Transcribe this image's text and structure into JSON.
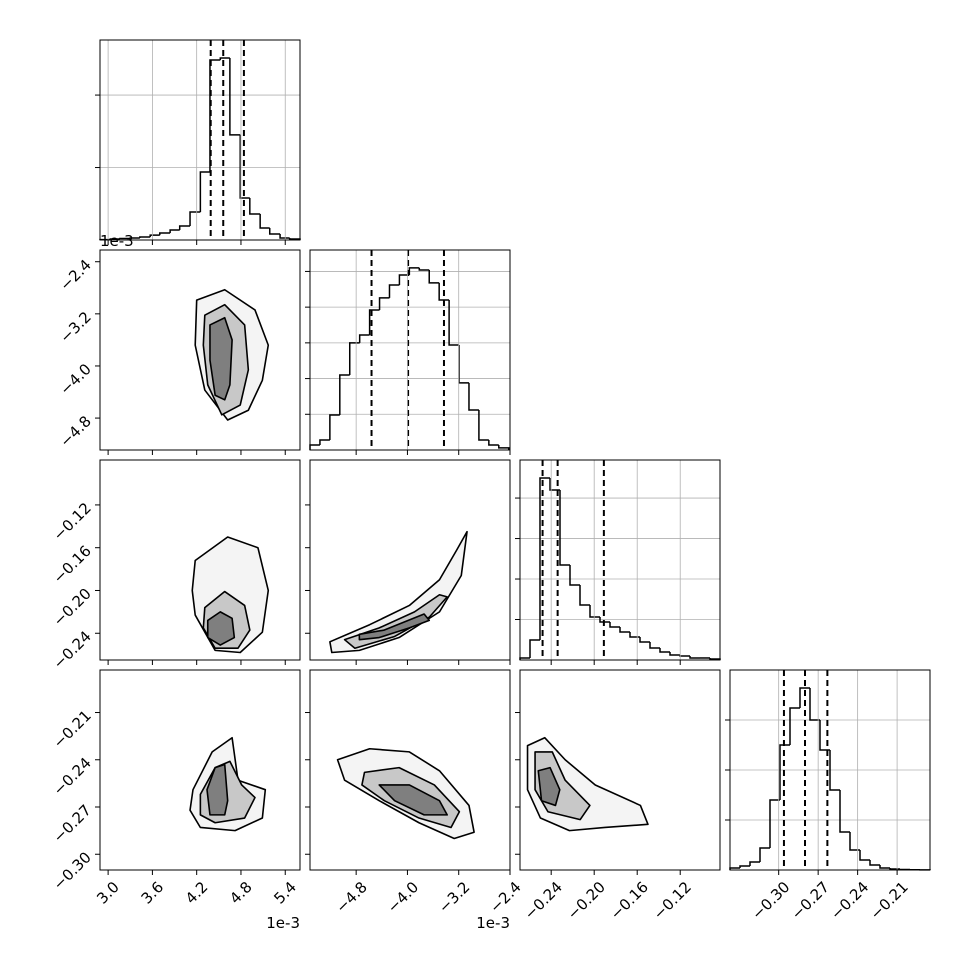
{
  "chart_data": {
    "type": "corner",
    "grid": true,
    "color": "#000000",
    "params": [
      {
        "xlim": [
          2.89,
          5.6
        ],
        "xticks": [
          {
            "value": 3,
            "label": "3.0"
          },
          3.6,
          4.2,
          4.8,
          5.4
        ],
        "x_offset": "1e-3",
        "bins": [
          2.89,
          3.03,
          3.16,
          3.3,
          3.43,
          3.57,
          3.7,
          3.84,
          3.97,
          4.11,
          4.25,
          4.38,
          4.52,
          4.65,
          4.79,
          4.92,
          5.06,
          5.19,
          5.33,
          5.46,
          5.6
        ],
        "counts": [
          3,
          7,
          10,
          14,
          21,
          34,
          48,
          69,
          97,
          193,
          469,
          1242,
          1256,
          725,
          290,
          179,
          83,
          41,
          14,
          7
        ],
        "hist_ylim": [
          0,
          1380
        ],
        "hist_yticks": [
          500,
          1000
        ],
        "quantiles": [
          4.39,
          4.56,
          4.84
        ]
      },
      {
        "xlim": [
          -5.52,
          -2.4
        ],
        "xticks": [
          {
            "value": -4.8,
            "label": "−4.8"
          },
          {
            "value": -4.0,
            "label": "−4.0"
          },
          {
            "value": -3.2,
            "label": "−3.2"
          },
          {
            "value": -2.4,
            "label": "−2.4"
          }
        ],
        "x_offset": "1e-3",
        "ylim": [
          -5.29,
          -2.22
        ],
        "yticks": [
          {
            "value": -2.4,
            "label": "−2.4"
          },
          {
            "value": -3.2,
            "label": "−3.2"
          },
          {
            "value": -4.0,
            "label": "−4.0"
          },
          {
            "value": -4.8,
            "label": "−4.8"
          }
        ],
        "y_offset": "1e-3",
        "bins": [
          -5.52,
          -5.365,
          -5.21,
          -5.055,
          -4.9,
          -4.745,
          -4.59,
          -4.435,
          -4.28,
          -4.125,
          -3.97,
          -3.815,
          -3.66,
          -3.505,
          -3.35,
          -3.195,
          -3.04,
          -2.885,
          -2.73,
          -2.575,
          -2.42
        ],
        "counts": [
          14,
          28,
          98,
          210,
          300,
          322,
          392,
          426,
          462,
          490,
          510,
          504,
          468,
          420,
          294,
          188,
          112,
          28,
          14,
          6
        ],
        "hist_ylim": [
          0,
          560
        ],
        "hist_yticks": [
          100,
          200,
          300,
          400,
          500
        ],
        "quantiles": [
          -4.56,
          -3.99,
          -3.43
        ]
      },
      {
        "xlim": [
          -0.269,
          -0.083
        ],
        "xticks": [
          {
            "value": -0.24,
            "label": "−0.24"
          },
          {
            "value": -0.2,
            "label": "−0.20"
          },
          {
            "value": -0.16,
            "label": "−0.16"
          },
          {
            "value": -0.12,
            "label": "−0.12"
          }
        ],
        "ylim": [
          -0.265,
          -0.078
        ],
        "yticks": [
          {
            "value": -0.12,
            "label": "−0.12"
          },
          {
            "value": -0.16,
            "label": "−0.16"
          },
          {
            "value": -0.2,
            "label": "−0.20"
          },
          {
            "value": -0.24,
            "label": "−0.24"
          }
        ],
        "bins": [
          -0.269,
          -0.2597,
          -0.2504,
          -0.2411,
          -0.2318,
          -0.2225,
          -0.2132,
          -0.2039,
          -0.1946,
          -0.1853,
          -0.176,
          -0.1667,
          -0.1574,
          -0.1481,
          -0.1388,
          -0.1295,
          -0.1202,
          -0.1109,
          -0.1016,
          -0.0923,
          -0.083
        ],
        "counts": [
          25,
          247,
          2248,
          2100,
          1173,
          926,
          679,
          531,
          469,
          408,
          346,
          284,
          222,
          148,
          99,
          62,
          49,
          25,
          25,
          12
        ],
        "hist_ylim": [
          0,
          2470
        ],
        "hist_yticks": [
          500,
          1000,
          1500,
          2000
        ],
        "quantiles": [
          -0.248,
          -0.234,
          -0.191
        ]
      },
      {
        "xlim": [
          -0.337,
          -0.185
        ],
        "xticks": [
          {
            "value": -0.3,
            "label": "−0.30"
          },
          {
            "value": -0.27,
            "label": "−0.27"
          },
          {
            "value": -0.24,
            "label": "−0.24"
          },
          {
            "value": -0.21,
            "label": "−0.21"
          }
        ],
        "ylim": [
          -0.31,
          -0.183
        ],
        "yticks": [
          {
            "value": -0.21,
            "label": "−0.21"
          },
          {
            "value": -0.24,
            "label": "−0.24"
          },
          {
            "value": -0.27,
            "label": "−0.27"
          },
          {
            "value": -0.3,
            "label": "−0.30"
          }
        ],
        "bins": [
          -0.337,
          -0.3294,
          -0.3218,
          -0.3142,
          -0.3066,
          -0.299,
          -0.2914,
          -0.2838,
          -0.2762,
          -0.2686,
          -0.261,
          -0.2534,
          -0.2458,
          -0.2382,
          -0.2306,
          -0.223,
          -0.2154,
          -0.2078,
          -0.2002,
          -0.1926,
          -0.185
        ],
        "counts": [
          20,
          40,
          80,
          220,
          700,
          1250,
          1620,
          1820,
          1500,
          1200,
          800,
          380,
          200,
          100,
          50,
          20,
          10,
          5,
          2,
          1
        ],
        "hist_ylim": [
          0,
          2000
        ],
        "hist_yticks": [
          500,
          1000,
          1500
        ],
        "quantiles": [
          -0.296,
          -0.28,
          -0.263
        ]
      }
    ],
    "pairs": [
      {
        "contours": [
          {
            "x": [
              4.2,
              4.58,
              4.99,
              5.17,
              5.09,
              4.9,
              4.62,
              4.31,
              4.18
            ],
            "y": [
              -2.99,
              -2.83,
              -3.14,
              -3.68,
              -4.22,
              -4.68,
              -4.83,
              -4.37,
              -3.68
            ]
          },
          {
            "x": [
              4.31,
              4.58,
              4.85,
              4.9,
              4.79,
              4.54,
              4.35,
              4.29
            ],
            "y": [
              -3.22,
              -3.06,
              -3.37,
              -4.06,
              -4.6,
              -4.75,
              -4.29,
              -3.68
            ]
          },
          {
            "x": [
              4.38,
              4.58,
              4.68,
              4.65,
              4.58,
              4.45,
              4.38
            ],
            "y": [
              -3.37,
              -3.26,
              -3.6,
              -4.29,
              -4.52,
              -4.45,
              -3.91
            ]
          }
        ]
      },
      {
        "contours": [
          {
            "x": [
              4.18,
              4.62,
              5.03,
              5.17,
              5.09,
              4.79,
              4.45,
              4.18,
              4.14
            ],
            "y": [
              -0.172,
              -0.15,
              -0.16,
              -0.2,
              -0.239,
              -0.258,
              -0.256,
              -0.223,
              -0.2
            ]
          },
          {
            "x": [
              4.31,
              4.58,
              4.85,
              4.92,
              4.76,
              4.45,
              4.29
            ],
            "y": [
              -0.216,
              -0.201,
              -0.214,
              -0.237,
              -0.254,
              -0.254,
              -0.235
            ]
          },
          {
            "x": [
              4.35,
              4.52,
              4.68,
              4.71,
              4.52,
              4.35
            ],
            "y": [
              -0.228,
              -0.22,
              -0.226,
              -0.244,
              -0.251,
              -0.244
            ]
          }
        ]
      },
      {
        "contours": [
          {
            "x": [
              -5.21,
              -4.59,
              -3.97,
              -3.5,
              -3.23,
              -3.07,
              -3.16,
              -3.5,
              -4.13,
              -4.75,
              -5.18
            ],
            "y": [
              -0.248,
              -0.232,
              -0.214,
              -0.19,
              -0.162,
              -0.145,
              -0.186,
              -0.22,
              -0.244,
              -0.256,
              -0.258
            ]
          },
          {
            "x": [
              -4.98,
              -4.44,
              -3.89,
              -3.5,
              -3.38,
              -3.66,
              -4.2,
              -4.82
            ],
            "y": [
              -0.246,
              -0.235,
              -0.22,
              -0.204,
              -0.206,
              -0.225,
              -0.243,
              -0.254
            ]
          },
          {
            "x": [
              -4.75,
              -4.36,
              -3.74,
              -3.66,
              -3.97,
              -4.44,
              -4.75
            ],
            "y": [
              -0.241,
              -0.237,
              -0.222,
              -0.228,
              -0.235,
              -0.244,
              -0.246
            ]
          }
        ]
      },
      {
        "contours": [
          {
            "x": [
              4.15,
              4.41,
              4.68,
              4.76,
              5.13,
              5.09,
              4.72,
              4.25,
              4.11
            ],
            "y": [
              -0.259,
              -0.235,
              -0.226,
              -0.253,
              -0.259,
              -0.277,
              -0.285,
              -0.283,
              -0.272
            ]
          },
          {
            "x": [
              4.25,
              4.45,
              4.65,
              4.81,
              4.99,
              4.85,
              4.45,
              4.25
            ],
            "y": [
              -0.262,
              -0.245,
              -0.241,
              -0.256,
              -0.264,
              -0.277,
              -0.28,
              -0.275
            ]
          },
          {
            "x": [
              4.34,
              4.45,
              4.58,
              4.62,
              4.58,
              4.38
            ],
            "y": [
              -0.259,
              -0.245,
              -0.243,
              -0.266,
              -0.275,
              -0.275
            ]
          }
        ]
      },
      {
        "contours": [
          {
            "x": [
              -5.09,
              -4.59,
              -3.97,
              -3.5,
              -3.04,
              -2.96,
              -3.27,
              -3.82,
              -4.44,
              -4.98
            ],
            "y": [
              -0.24,
              -0.233,
              -0.235,
              -0.247,
              -0.269,
              -0.286,
              -0.29,
              -0.28,
              -0.266,
              -0.253
            ]
          },
          {
            "x": [
              -4.67,
              -4.13,
              -3.58,
              -3.19,
              -3.32,
              -3.82,
              -4.36,
              -4.71
            ],
            "y": [
              -0.248,
              -0.245,
              -0.256,
              -0.273,
              -0.283,
              -0.277,
              -0.266,
              -0.256
            ]
          },
          {
            "x": [
              -4.44,
              -3.97,
              -3.5,
              -3.38,
              -3.74,
              -4.2
            ],
            "y": [
              -0.256,
              -0.256,
              -0.266,
              -0.275,
              -0.275,
              -0.266
            ]
          }
        ]
      },
      {
        "contours": [
          {
            "x": [
              -0.262,
              -0.246,
              -0.227,
              -0.199,
              -0.157,
              -0.15,
              -0.19,
              -0.223,
              -0.25,
              -0.262
            ],
            "y": [
              -0.231,
              -0.226,
              -0.24,
              -0.256,
              -0.269,
              -0.281,
              -0.283,
              -0.285,
              -0.277,
              -0.259
            ]
          },
          {
            "x": [
              -0.255,
              -0.239,
              -0.227,
              -0.204,
              -0.213,
              -0.243,
              -0.255
            ],
            "y": [
              -0.235,
              -0.235,
              -0.253,
              -0.269,
              -0.278,
              -0.273,
              -0.259
            ]
          },
          {
            "x": [
              -0.252,
              -0.241,
              -0.232,
              -0.236,
              -0.249
            ],
            "y": [
              -0.247,
              -0.245,
              -0.259,
              -0.269,
              -0.266
            ]
          }
        ]
      }
    ]
  }
}
